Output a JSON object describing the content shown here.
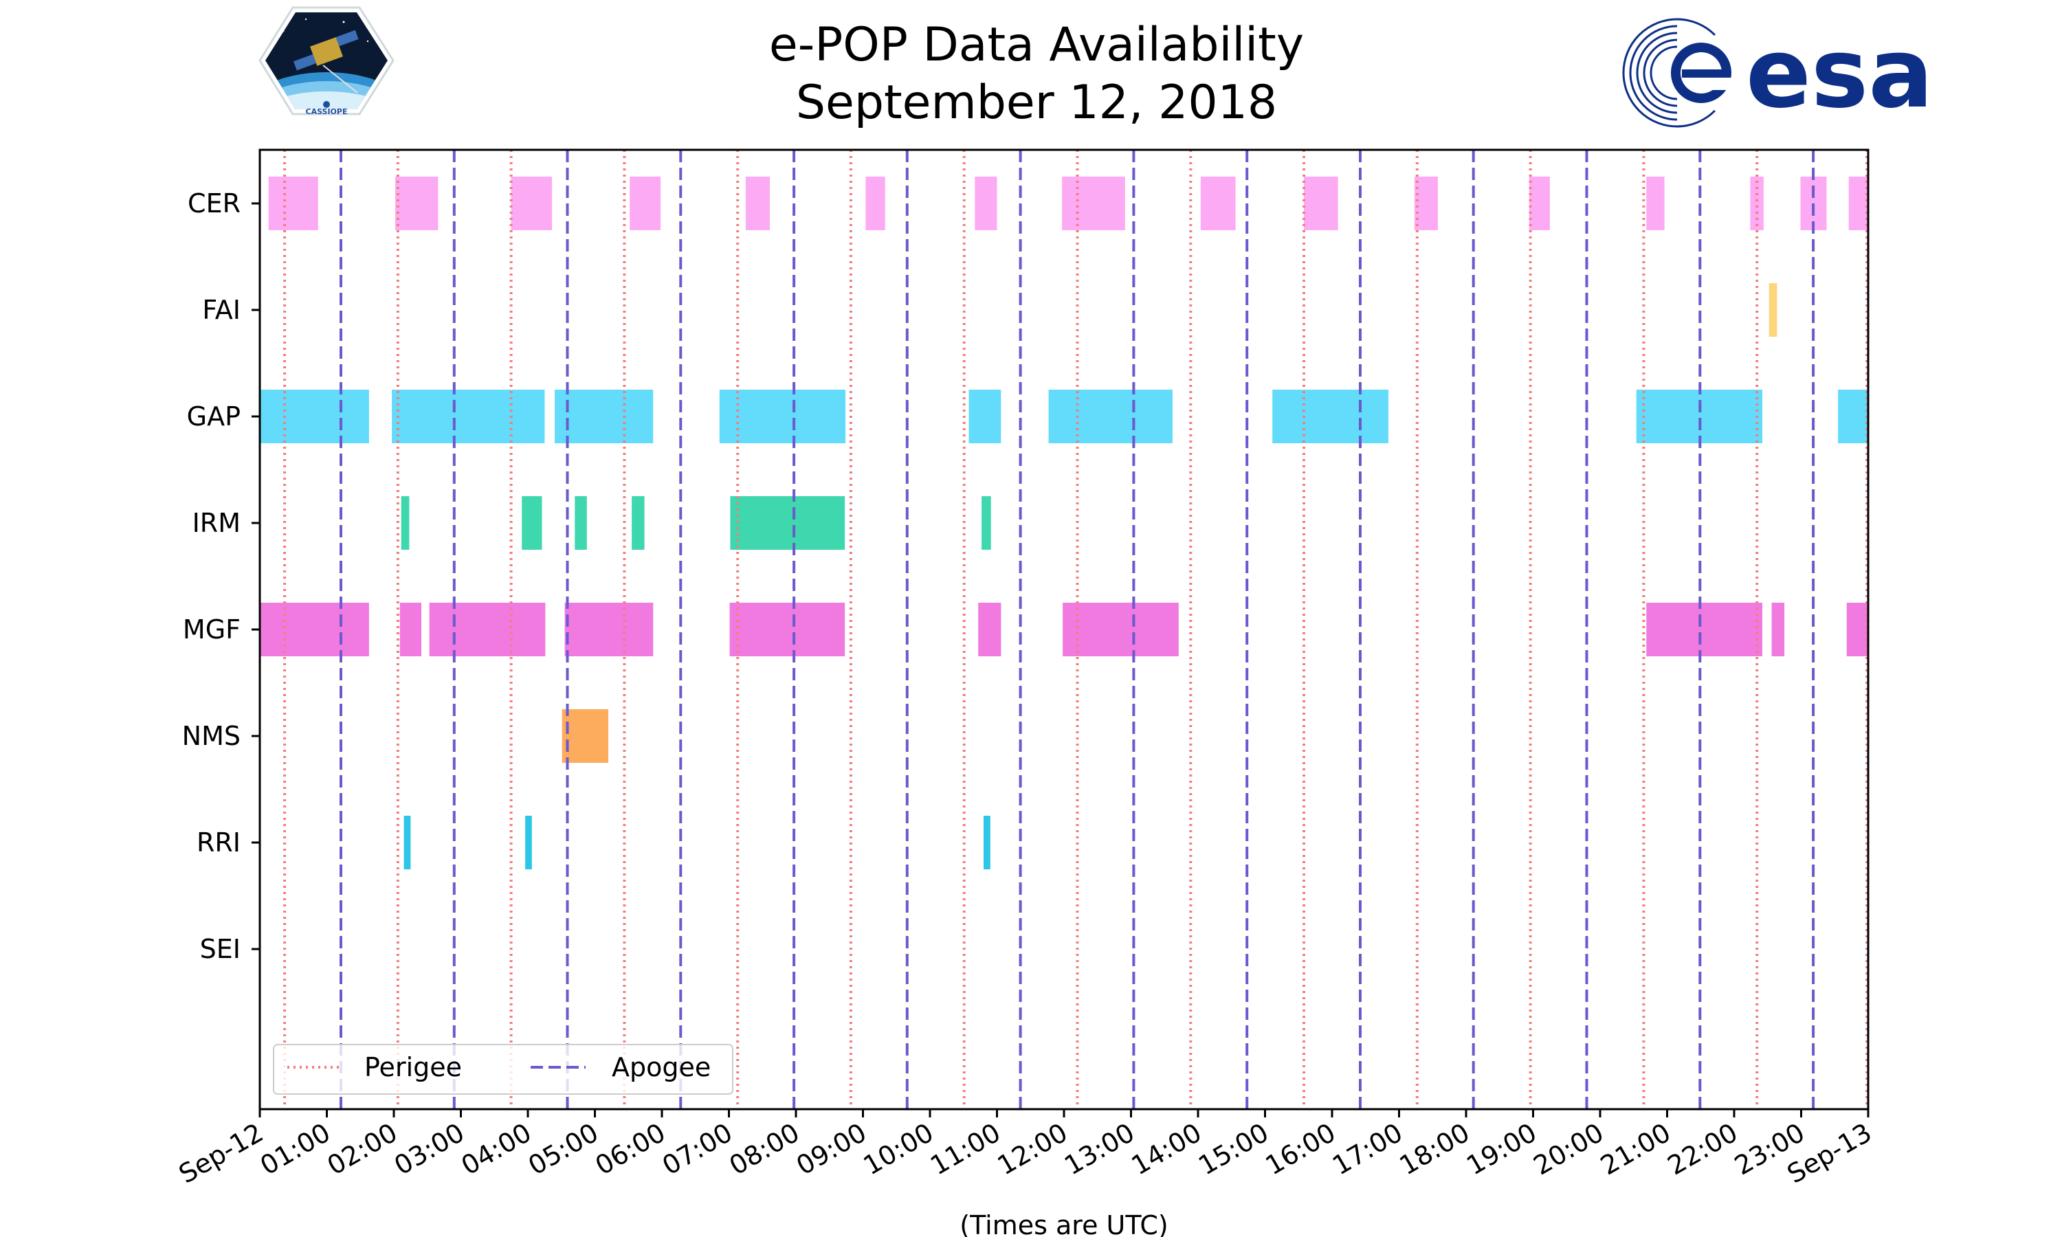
{
  "title": {
    "line1": "e-POP Data Availability",
    "line2": "September 12, 2018"
  },
  "logos": {
    "left_caption": "CASSIOPE",
    "right_wordmark": "esa"
  },
  "chart_data": {
    "type": "timeline",
    "title": "e-POP Data Availability September 12, 2018",
    "xlabel": "(Times are UTC)",
    "ylabel": "",
    "xlim_hours": [
      0,
      24
    ],
    "x_tick_labels": [
      "Sep-12",
      "01:00",
      "02:00",
      "03:00",
      "04:00",
      "05:00",
      "06:00",
      "07:00",
      "08:00",
      "09:00",
      "10:00",
      "11:00",
      "12:00",
      "13:00",
      "14:00",
      "15:00",
      "16:00",
      "17:00",
      "18:00",
      "19:00",
      "20:00",
      "21:00",
      "22:00",
      "23:00",
      "Sep-13"
    ],
    "instruments": [
      "CER",
      "FAI",
      "GAP",
      "IRM",
      "MGF",
      "NMS",
      "RRI",
      "SEI"
    ],
    "colors": {
      "CER": "#fdaaf5",
      "FAI": "#fdd57a",
      "GAP": "#63dbfa",
      "IRM": "#3fd7ae",
      "MGF": "#f07ae0",
      "NMS": "#fdab5c",
      "RRI": "#2ec6e6",
      "SEI": "#cccccc",
      "perigee": "#f47c7c",
      "apogee": "#6a5acd"
    },
    "intervals_hours": {
      "CER": [
        [
          0.13,
          0.87
        ],
        [
          2.02,
          2.66
        ],
        [
          3.75,
          4.36
        ],
        [
          5.52,
          5.98
        ],
        [
          7.25,
          7.61
        ],
        [
          9.04,
          9.33
        ],
        [
          10.67,
          11.0
        ],
        [
          11.97,
          12.91
        ],
        [
          14.04,
          14.56
        ],
        [
          15.58,
          16.09
        ],
        [
          17.23,
          17.58
        ],
        [
          18.94,
          19.25
        ],
        [
          20.69,
          20.96
        ],
        [
          22.24,
          22.44
        ],
        [
          22.99,
          23.38
        ],
        [
          23.71,
          24.0
        ]
      ],
      "FAI": [
        [
          22.52,
          22.64
        ]
      ],
      "GAP": [
        [
          0.0,
          1.63
        ],
        [
          1.97,
          4.25
        ],
        [
          4.4,
          5.87
        ],
        [
          6.86,
          8.74
        ],
        [
          10.58,
          11.06
        ],
        [
          11.77,
          13.62
        ],
        [
          15.11,
          16.84
        ],
        [
          20.54,
          22.42
        ],
        [
          23.55,
          24.0
        ]
      ],
      "IRM": [
        [
          2.11,
          2.23
        ],
        [
          3.91,
          4.21
        ],
        [
          4.7,
          4.88
        ],
        [
          5.55,
          5.74
        ],
        [
          7.02,
          8.73
        ],
        [
          10.77,
          10.91
        ]
      ],
      "MGF": [
        [
          0.0,
          1.63
        ],
        [
          2.09,
          2.41
        ],
        [
          2.53,
          4.26
        ],
        [
          4.55,
          5.87
        ],
        [
          7.01,
          8.73
        ],
        [
          10.72,
          11.06
        ],
        [
          11.98,
          13.71
        ],
        [
          20.69,
          22.42
        ],
        [
          22.56,
          22.75
        ],
        [
          23.68,
          24.0
        ]
      ],
      "NMS": [
        [
          4.51,
          5.2
        ]
      ],
      "RRI": [
        [
          2.15,
          2.25
        ],
        [
          3.96,
          4.06
        ],
        [
          10.8,
          10.9
        ]
      ],
      "SEI": []
    },
    "perigee_hours": [
      0.37,
      2.06,
      3.75,
      5.44,
      7.13,
      8.82,
      10.51,
      12.2,
      13.89,
      15.58,
      17.27,
      18.96,
      20.65,
      22.34,
      23.98
    ],
    "apogee_hours": [
      1.21,
      2.9,
      4.59,
      6.28,
      7.97,
      9.66,
      11.35,
      13.04,
      14.73,
      16.42,
      18.11,
      19.8,
      21.49,
      23.18
    ],
    "legend": {
      "position": "lower-left",
      "entries": [
        {
          "label": "Perigee",
          "style": "dotted"
        },
        {
          "label": "Apogee",
          "style": "dashed"
        }
      ]
    }
  }
}
